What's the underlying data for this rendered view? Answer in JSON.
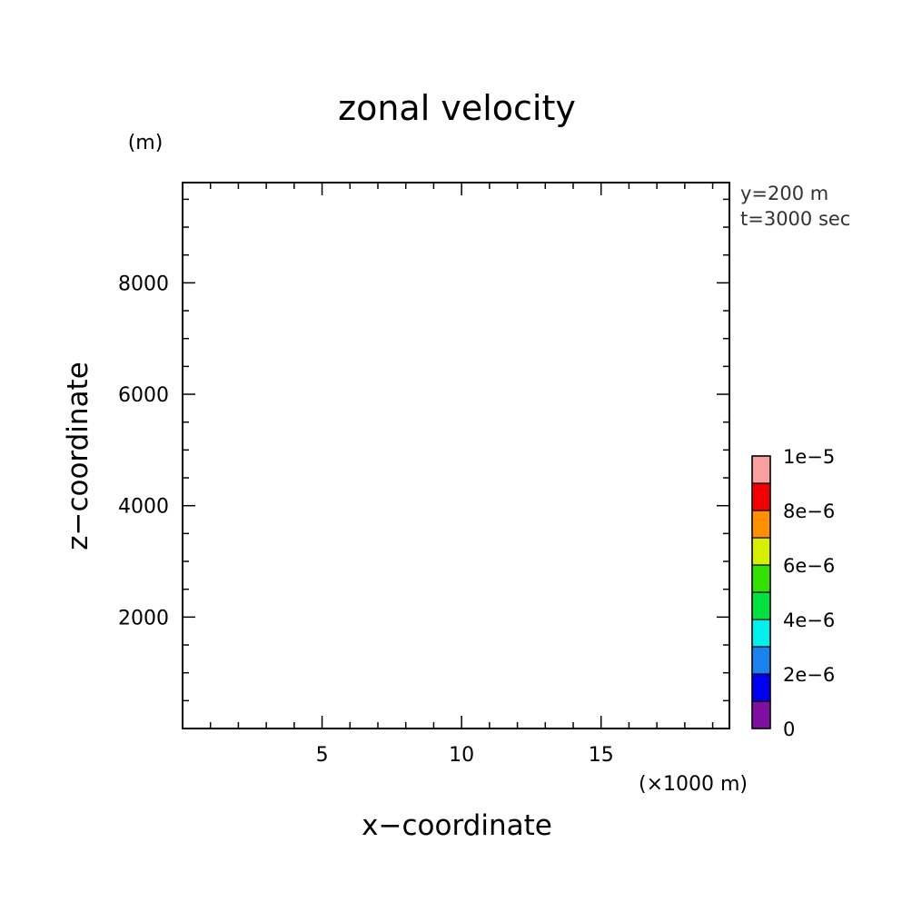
{
  "chart_data": {
    "type": "heatmap",
    "title": "zonal velocity",
    "xlabel": "x−coordinate",
    "ylabel": "z−coordinate",
    "x_unit": "(×1000 m)",
    "y_unit": "(m)",
    "annotations": [
      "y=200 m",
      "t=3000 sec"
    ],
    "xlim": [
      0,
      19.6
    ],
    "ylim": [
      0,
      9800
    ],
    "x_ticks": [
      {
        "value": 5,
        "label": "5"
      },
      {
        "value": 10,
        "label": "10"
      },
      {
        "value": 15,
        "label": "15"
      }
    ],
    "y_ticks": [
      {
        "value": 2000,
        "label": "2000"
      },
      {
        "value": 4000,
        "label": "4000"
      },
      {
        "value": 6000,
        "label": "6000"
      },
      {
        "value": 8000,
        "label": "8000"
      }
    ],
    "x_minor_step": 1,
    "y_minor_step": 500,
    "grid": false,
    "values": [],
    "colorbar": {
      "range": [
        0,
        1e-05
      ],
      "levels": [
        0,
        1e-06,
        2e-06,
        3e-06,
        4e-06,
        5e-06,
        6e-06,
        7e-06,
        8e-06,
        9e-06,
        1e-05
      ],
      "colors": [
        "#7e0fa0",
        "#0000ee",
        "#1a82ee",
        "#00f0ee",
        "#00e040",
        "#33e000",
        "#d6ee00",
        "#ff9000",
        "#f00000",
        "#f8a0a0"
      ],
      "labels": [
        {
          "value": 0,
          "label": "0"
        },
        {
          "value": 2e-06,
          "label": "2e−6"
        },
        {
          "value": 4e-06,
          "label": "4e−6"
        },
        {
          "value": 6e-06,
          "label": "6e−6"
        },
        {
          "value": 8e-06,
          "label": "8e−6"
        },
        {
          "value": 1e-05,
          "label": "1e−5"
        }
      ]
    }
  }
}
